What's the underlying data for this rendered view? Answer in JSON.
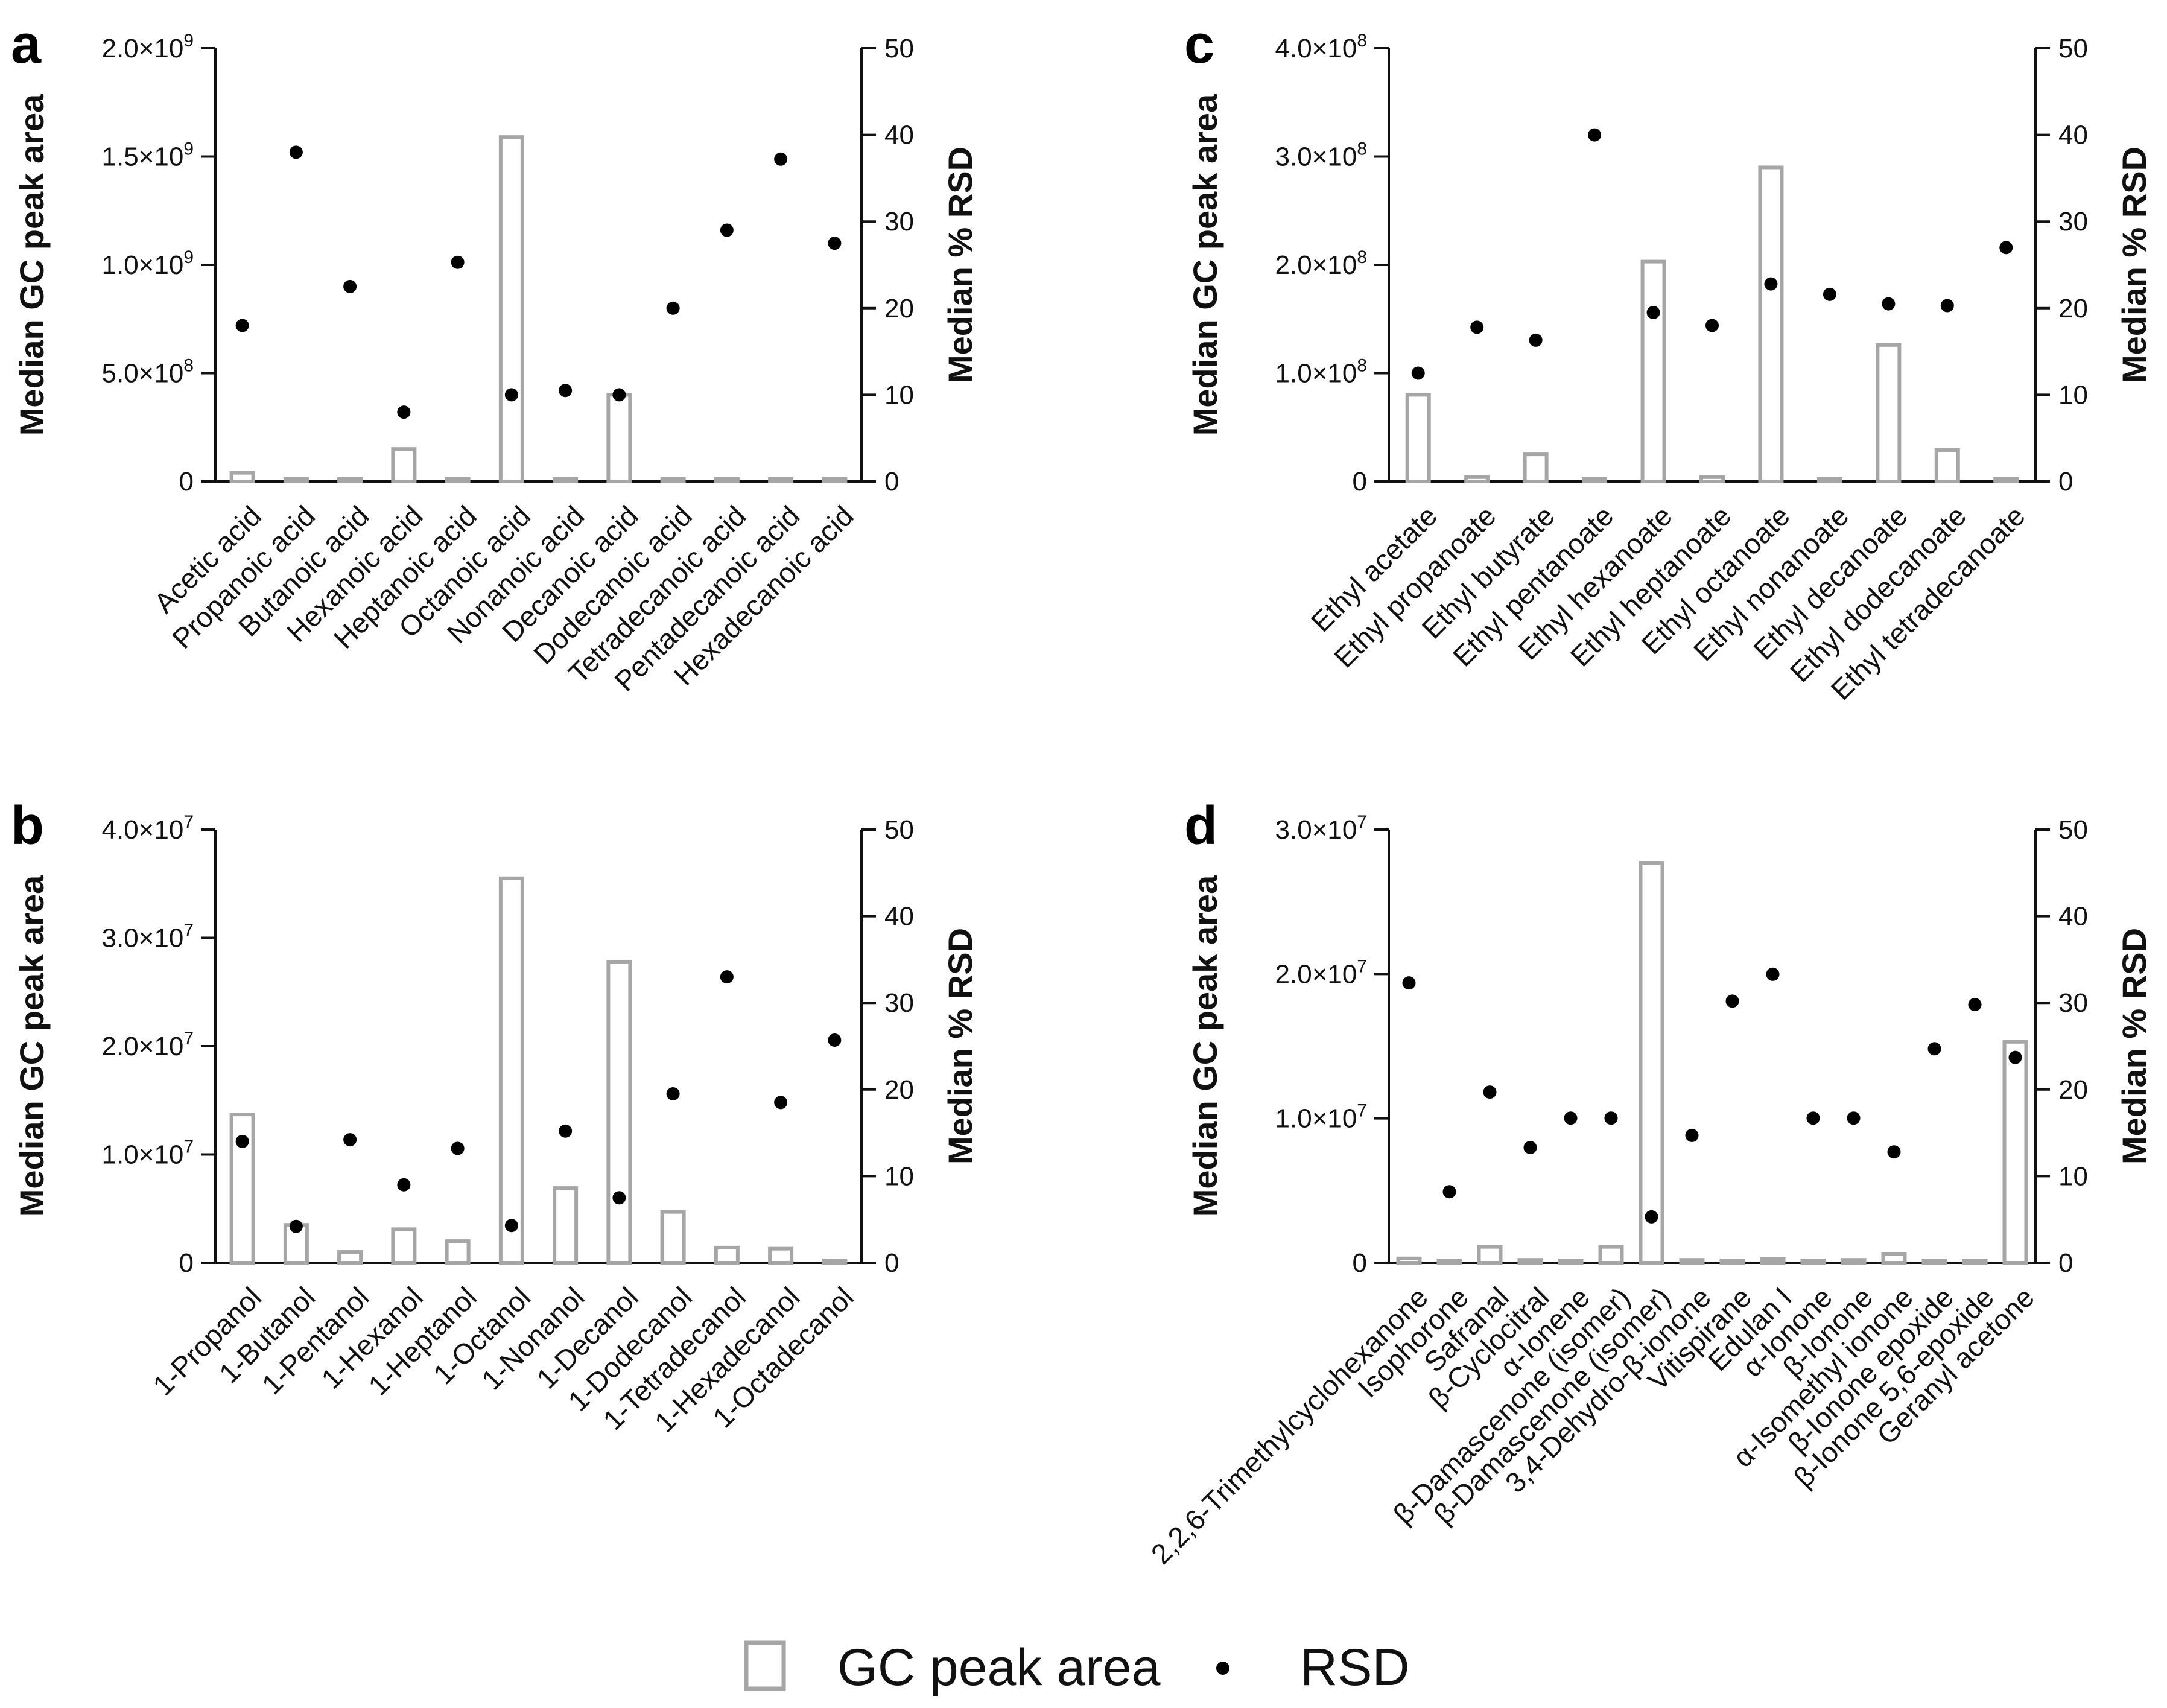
{
  "legend": {
    "bar_label": "GC peak area",
    "dot_label": "RSD",
    "bar_icon": "hollow-square",
    "dot_icon": "filled-circle"
  },
  "colors": {
    "bar_stroke": "#a6a6a6",
    "dot_fill": "#000000",
    "axis": "#111111"
  },
  "chart_data": [
    {
      "panel": "a",
      "type": "bar",
      "ylabel_left": "Median GC peak area",
      "ylabel_right": "Median % RSD",
      "y_left_ticks": [
        {
          "value": 0,
          "label": "0"
        },
        {
          "value": 500000000,
          "label": "5.0×10",
          "exp": "8"
        },
        {
          "value": 1000000000,
          "label": "1.0×10",
          "exp": "9"
        },
        {
          "value": 1500000000,
          "label": "1.5×10",
          "exp": "9"
        },
        {
          "value": 2000000000,
          "label": "2.0×10",
          "exp": "9"
        }
      ],
      "y_left_lim": [
        0,
        2000000000
      ],
      "y_right_ticks": [
        0,
        10,
        20,
        30,
        40,
        50
      ],
      "y_right_lim": [
        0,
        50
      ],
      "categories": [
        "Acetic acid",
        "Propanoic acid",
        "Butanoic acid",
        "Hexanoic acid",
        "Heptanoic acid",
        "Octanoic acid",
        "Nonanoic acid",
        "Decanoic acid",
        "Dodecanoic acid",
        "Tetradecanoic acid",
        "Pentadecanoic acid",
        "Hexadecanoic acid"
      ],
      "series": [
        {
          "name": "GC peak area",
          "kind": "bar",
          "values": [
            40000000,
            3000000,
            3000000,
            150000000,
            2000000,
            1590000000,
            3000000,
            400000000,
            3000000,
            2000000,
            2000000,
            5000000
          ]
        },
        {
          "name": "RSD",
          "kind": "dot",
          "values": [
            18,
            38,
            22.5,
            8,
            25.3,
            10,
            10.5,
            10,
            20,
            29,
            37.2,
            27.5
          ]
        }
      ]
    },
    {
      "panel": "b",
      "type": "bar",
      "ylabel_left": "Median GC peak area",
      "ylabel_right": "Median % RSD",
      "y_left_ticks": [
        {
          "value": 0,
          "label": "0"
        },
        {
          "value": 10000000,
          "label": "1.0×10",
          "exp": "7"
        },
        {
          "value": 20000000,
          "label": "2.0×10",
          "exp": "7"
        },
        {
          "value": 30000000,
          "label": "3.0×10",
          "exp": "7"
        },
        {
          "value": 40000000,
          "label": "4.0×10",
          "exp": "7"
        }
      ],
      "y_left_lim": [
        0,
        40000000
      ],
      "y_right_ticks": [
        0,
        10,
        20,
        30,
        40,
        50
      ],
      "y_right_lim": [
        0,
        50
      ],
      "categories": [
        "1-Propanol",
        "1-Butanol",
        "1-Pentanol",
        "1-Hexanol",
        "1-Heptanol",
        "1-Octanol",
        "1-Nonanol",
        "1-Decanol",
        "1-Dodecanol",
        "1-Tetradecanol",
        "1-Hexadecanol",
        "1-Octadecanol"
      ],
      "series": [
        {
          "name": "GC peak area",
          "kind": "bar",
          "values": [
            13700000,
            3500000,
            1000000,
            3100000,
            2000000,
            35500000,
            6900000,
            27800000,
            4700000,
            1400000,
            1300000,
            200000
          ]
        },
        {
          "name": "RSD",
          "kind": "dot",
          "values": [
            14,
            4.2,
            14.2,
            9,
            13.2,
            4.3,
            15.2,
            7.5,
            19.5,
            33,
            18.5,
            25.7
          ]
        }
      ]
    },
    {
      "panel": "c",
      "type": "bar",
      "ylabel_left": "Median GC peak area",
      "ylabel_right": "Median % RSD",
      "y_left_ticks": [
        {
          "value": 0,
          "label": "0"
        },
        {
          "value": 100000000,
          "label": "1.0×10",
          "exp": "8"
        },
        {
          "value": 200000000,
          "label": "2.0×10",
          "exp": "8"
        },
        {
          "value": 300000000,
          "label": "3.0×10",
          "exp": "8"
        },
        {
          "value": 400000000,
          "label": "4.0×10",
          "exp": "8"
        }
      ],
      "y_left_lim": [
        0,
        400000000
      ],
      "y_right_ticks": [
        0,
        10,
        20,
        30,
        40,
        50
      ],
      "y_right_lim": [
        0,
        50
      ],
      "categories": [
        "Ethyl acetate",
        "Ethyl propanoate",
        "Ethyl butyrate",
        "Ethyl pentanoate",
        "Ethyl hexanoate",
        "Ethyl heptanoate",
        "Ethyl octanoate",
        "Ethyl nonanoate",
        "Ethyl decanoate",
        "Ethyl dodecanoate",
        "Ethyl tetradecanoate"
      ],
      "series": [
        {
          "name": "GC peak area",
          "kind": "bar",
          "values": [
            80000000,
            4000000,
            25000000,
            1000000,
            203000000,
            4000000,
            290000000,
            1000000,
            126000000,
            29000000,
            500000
          ]
        },
        {
          "name": "RSD",
          "kind": "dot",
          "values": [
            12.5,
            17.8,
            16.3,
            40,
            19.5,
            18,
            22.8,
            21.6,
            20.5,
            20.3,
            27
          ]
        }
      ]
    },
    {
      "panel": "d",
      "type": "bar",
      "ylabel_left": "Median GC peak area",
      "ylabel_right": "Median % RSD",
      "y_left_ticks": [
        {
          "value": 0,
          "label": "0"
        },
        {
          "value": 10000000,
          "label": "1.0×10",
          "exp": "7"
        },
        {
          "value": 20000000,
          "label": "2.0×10",
          "exp": "7"
        },
        {
          "value": 30000000,
          "label": "3.0×10",
          "exp": "7"
        }
      ],
      "y_left_lim": [
        0,
        30000000
      ],
      "y_right_ticks": [
        0,
        10,
        20,
        30,
        40,
        50
      ],
      "y_right_lim": [
        0,
        50
      ],
      "categories": [
        "2,2,6-Trimethylcyclohexanone",
        "Isophorone",
        "Safranal",
        "β-Cyclocitral",
        "α-Ionene",
        "β-Damascenone (isomer)",
        "β-Damascenone (isomer)",
        "3,4-Dehydro-β-ionone",
        "Vitispirane",
        "Edulan I",
        "α-Ionone",
        "β-Ionone",
        "α-Isomethyl ionone",
        "β-Ionone epoxide",
        "β-Ionone 5,6-epoxide",
        "Geranyl acetone"
      ],
      "series": [
        {
          "name": "GC peak area",
          "kind": "bar",
          "values": [
            300000,
            100000,
            1100000,
            200000,
            100000,
            1100000,
            27700000,
            200000,
            150000,
            250000,
            100000,
            200000,
            600000,
            100000,
            100000,
            15300000
          ]
        },
        {
          "name": "RSD",
          "kind": "dot",
          "values": [
            32.3,
            8.2,
            19.7,
            13.3,
            16.7,
            16.7,
            5.3,
            14.7,
            30.2,
            33.3,
            16.7,
            16.7,
            12.8,
            24.7,
            29.8,
            23.7
          ]
        }
      ]
    }
  ]
}
